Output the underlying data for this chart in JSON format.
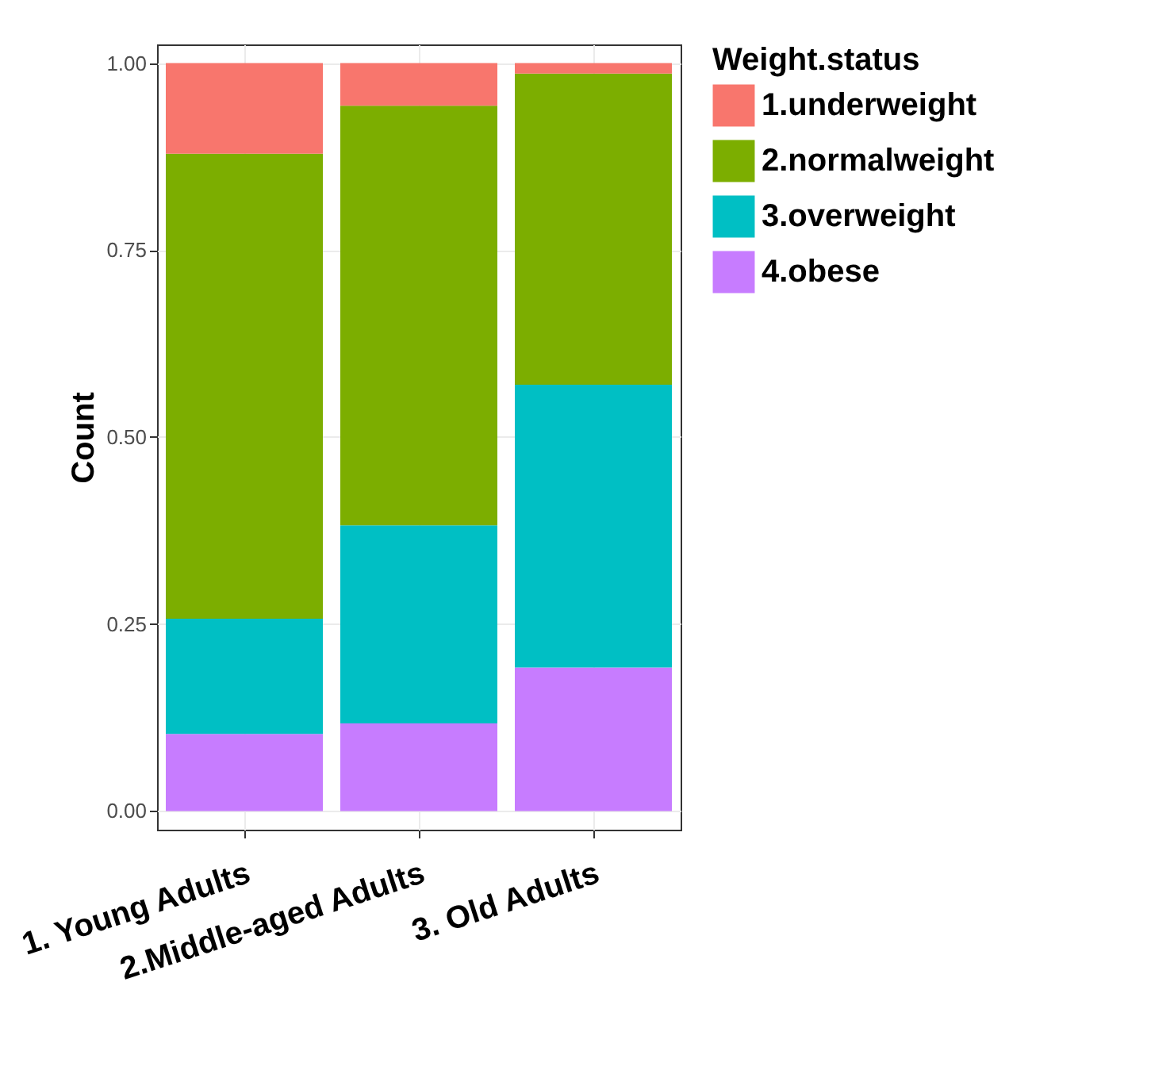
{
  "chart_data": {
    "type": "bar",
    "stacked": true,
    "categories": [
      "1. Young Adults",
      "2.Middle-aged Adults",
      "3. Old Adults"
    ],
    "series": [
      {
        "name": "4.obese",
        "color": "#c77cff",
        "values": [
          0.103,
          0.117,
          0.192
        ]
      },
      {
        "name": "3.overweight",
        "color": "#00bfc4",
        "values": [
          0.154,
          0.265,
          0.378
        ]
      },
      {
        "name": "2.normalweight",
        "color": "#7cae00",
        "values": [
          0.622,
          0.561,
          0.416
        ]
      },
      {
        "name": "1.underweight",
        "color": "#f8766d",
        "values": [
          0.121,
          0.057,
          0.014
        ]
      }
    ],
    "ylabel": "Count",
    "legend_title": "Weight.status",
    "legend": "right",
    "grid": true,
    "ylim": [
      -0.025,
      1.025
    ],
    "yticks": [
      {
        "value": 0,
        "label": "0.00"
      },
      {
        "value": 0.25,
        "label": "0.25"
      },
      {
        "value": 0.5,
        "label": "0.50"
      },
      {
        "value": 0.75,
        "label": "0.75"
      },
      {
        "value": 1,
        "label": "1.00"
      }
    ]
  }
}
